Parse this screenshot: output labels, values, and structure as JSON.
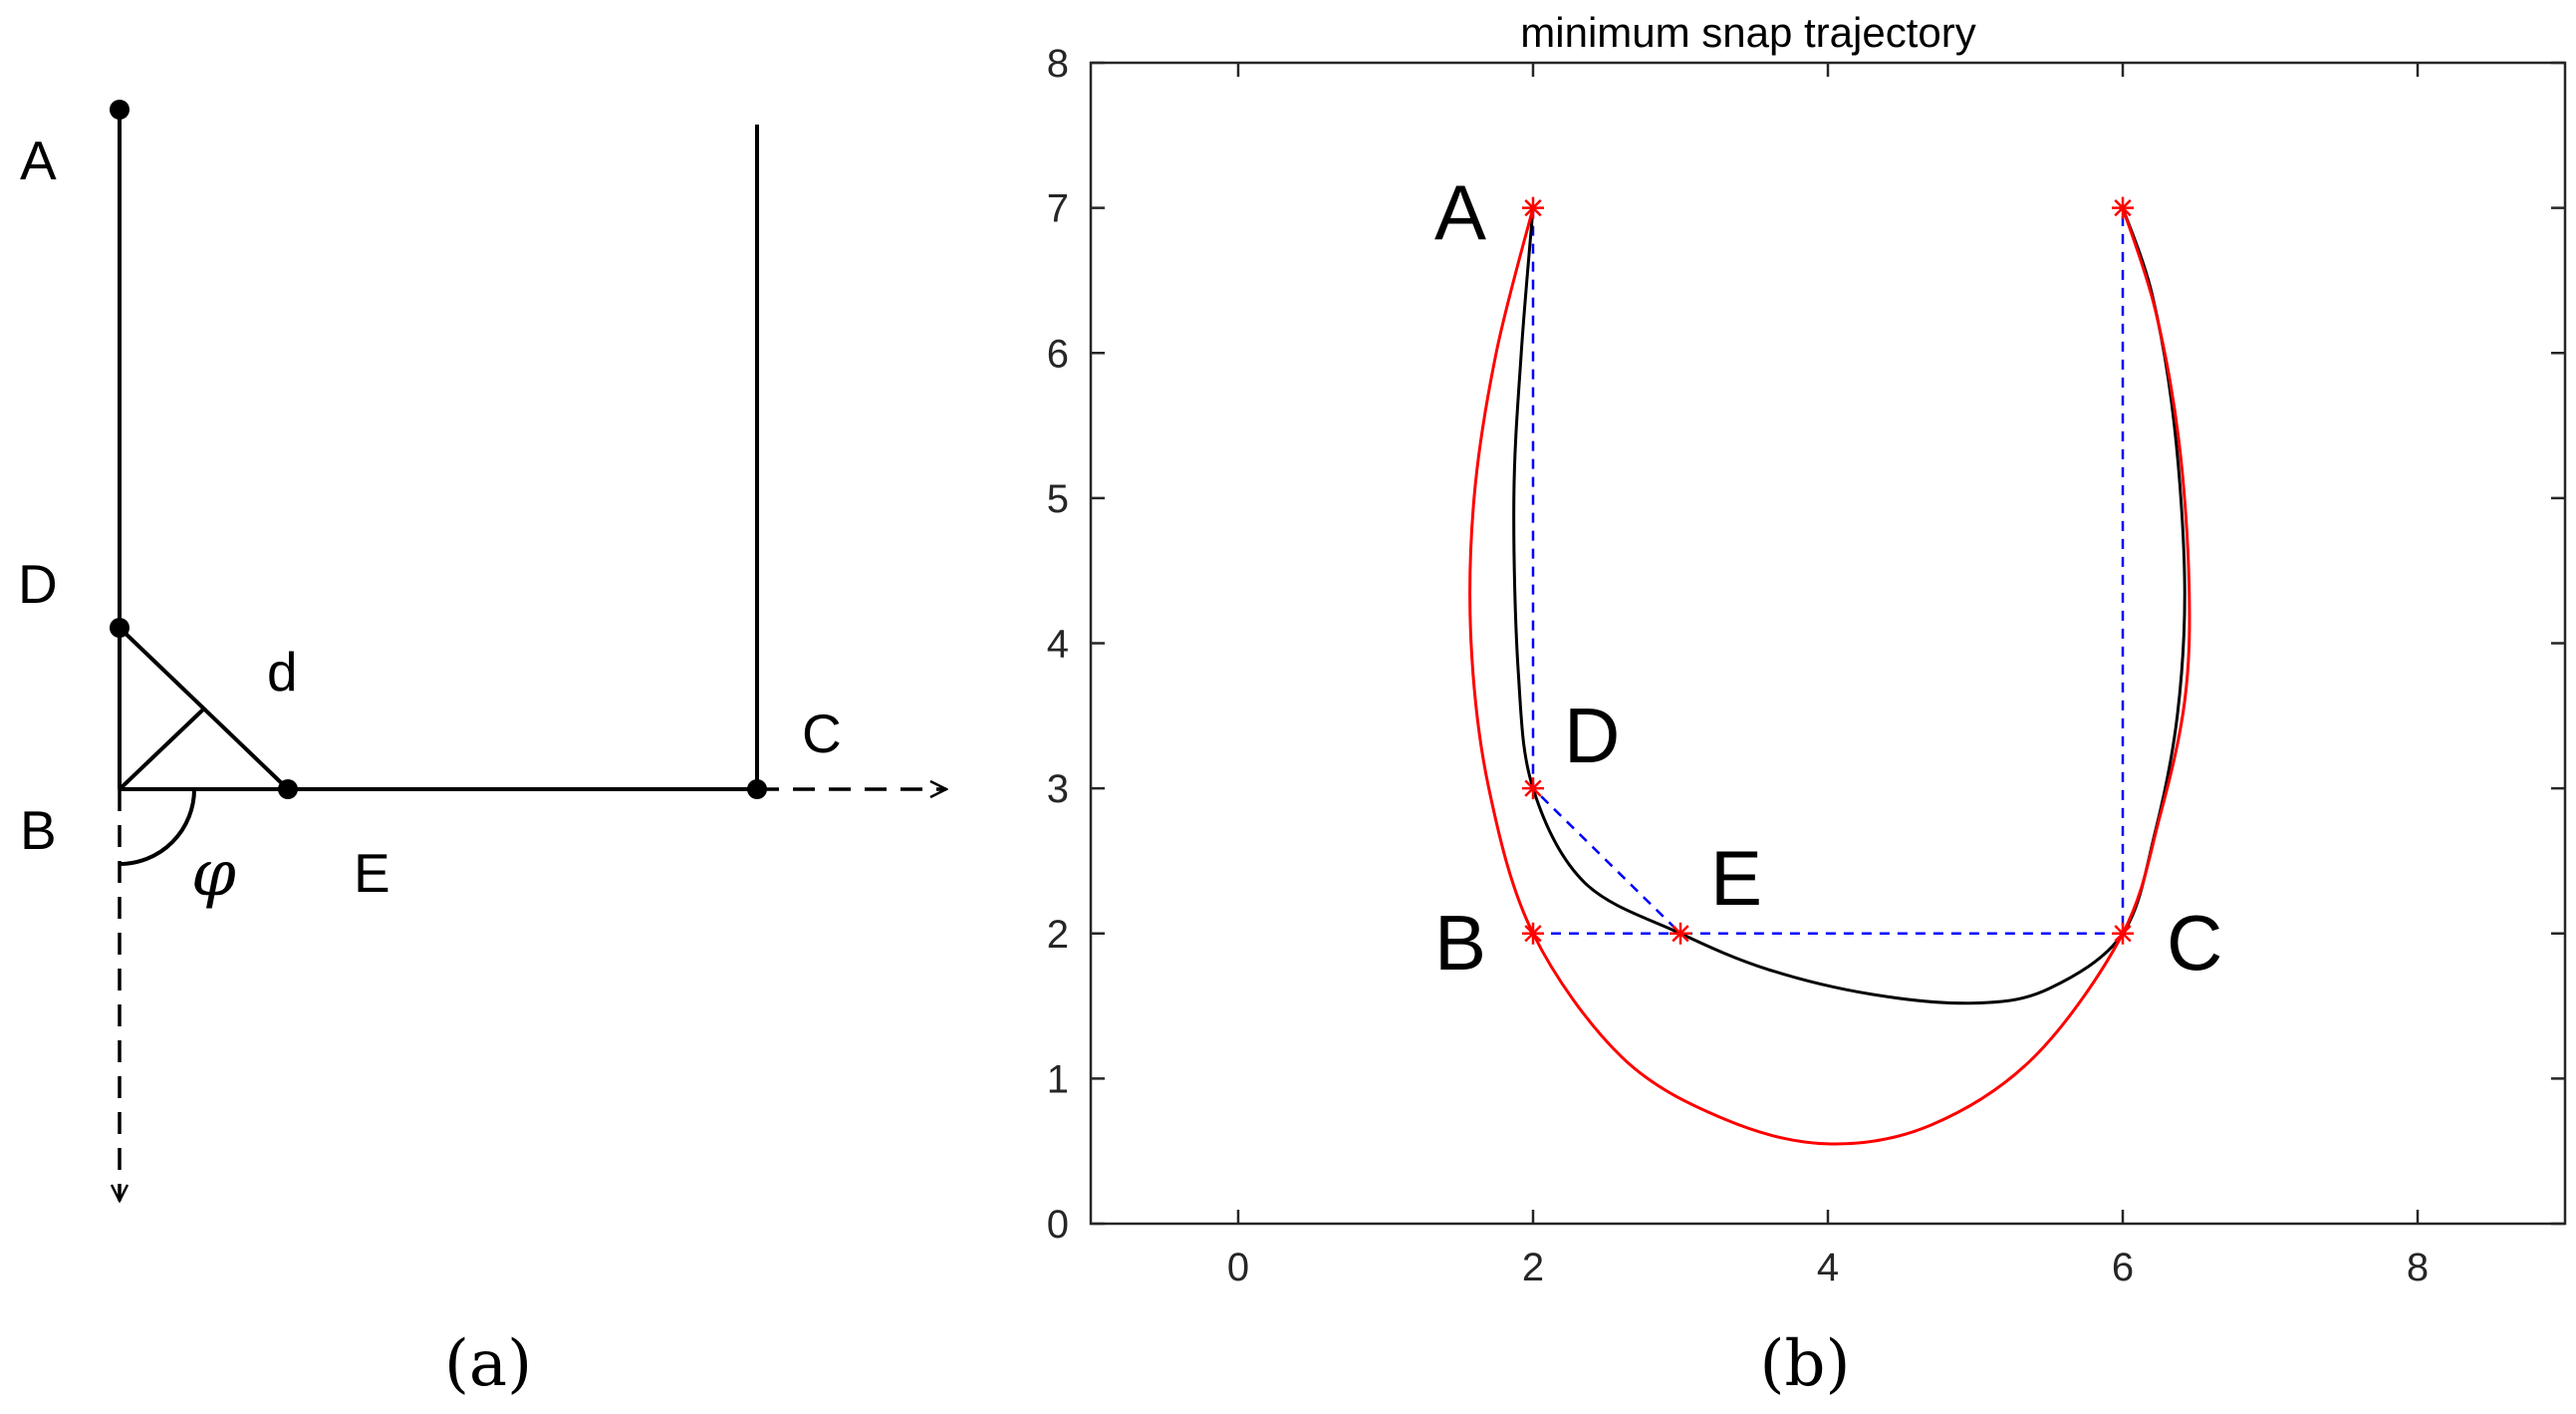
{
  "panel_a": {
    "caption": "(a)",
    "points": {
      "A": "A",
      "B": "B",
      "C": "C",
      "D": "D",
      "E": "E"
    },
    "distance_label": "d",
    "angle_label": "φ"
  },
  "panel_b": {
    "caption": "(b)"
  },
  "chart_data": {
    "type": "line",
    "title": "minimum snap trajectory",
    "xlabel": "",
    "ylabel": "",
    "xlim": [
      -1,
      9
    ],
    "ylim": [
      0,
      8
    ],
    "xticks": [
      0,
      2,
      4,
      6,
      8
    ],
    "yticks": [
      0,
      1,
      2,
      3,
      4,
      5,
      6,
      7,
      8
    ],
    "grid": false,
    "waypoints": [
      {
        "label": "A",
        "x": 2,
        "y": 7
      },
      {
        "label": "D",
        "x": 2,
        "y": 3
      },
      {
        "label": "E",
        "x": 3,
        "y": 2
      },
      {
        "label": "B",
        "x": 2,
        "y": 2
      },
      {
        "label": "C",
        "x": 6,
        "y": 2
      },
      {
        "label": "",
        "x": 6,
        "y": 7
      }
    ],
    "series": [
      {
        "color": "#0000ff",
        "style": "dashed",
        "x": [
          2,
          2,
          3,
          6,
          6
        ],
        "y": [
          7,
          3,
          2,
          2,
          7
        ]
      },
      {
        "color": "#0000ff",
        "style": "dashed",
        "x": [
          2,
          3
        ],
        "y": [
          2,
          2
        ]
      },
      {
        "color": "#000000",
        "style": "solid",
        "x": [
          2,
          1.92,
          1.87,
          1.9,
          2,
          2.35,
          3,
          3.6,
          4.3,
          5.0,
          5.5,
          6,
          6.22,
          6.37,
          6.42,
          6.35,
          6.2,
          6
        ],
        "y": [
          7,
          6,
          5,
          3.8,
          3,
          2.35,
          2,
          1.75,
          1.58,
          1.52,
          1.62,
          2,
          2.7,
          3.5,
          4.4,
          5.5,
          6.4,
          7
        ]
      },
      {
        "color": "#ff0000",
        "style": "solid",
        "x": [
          2,
          1.75,
          1.6,
          1.58,
          1.7,
          2,
          2.6,
          3.3,
          4,
          4.7,
          5.4,
          6,
          6.25,
          6.42,
          6.45,
          6.38,
          6.22,
          6
        ],
        "y": [
          7,
          6,
          5,
          4,
          3,
          2,
          1.15,
          0.72,
          0.55,
          0.68,
          1.15,
          2,
          2.8,
          3.6,
          4.4,
          5.4,
          6.3,
          7
        ]
      }
    ]
  }
}
